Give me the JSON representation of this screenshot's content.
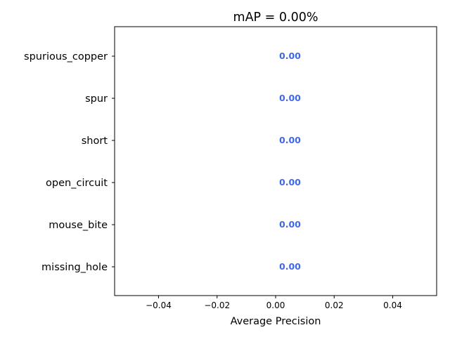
{
  "chart_data": {
    "type": "bar",
    "orientation": "horizontal",
    "title": "mAP = 0.00%",
    "xlabel": "Average Precision",
    "ylabel": "",
    "categories": [
      "spurious_copper",
      "spur",
      "short",
      "open_circuit",
      "mouse_bite",
      "missing_hole"
    ],
    "values": [
      0.0,
      0.0,
      0.0,
      0.0,
      0.0,
      0.0
    ],
    "value_labels": [
      "0.00",
      "0.00",
      "0.00",
      "0.00",
      "0.00",
      "0.00"
    ],
    "xlim": [
      -0.055,
      0.055
    ],
    "xticks": [
      -0.04,
      -0.02,
      0.0,
      0.02,
      0.04
    ],
    "xtick_labels": [
      "−0.04",
      "−0.02",
      "0.00",
      "0.02",
      "0.04"
    ],
    "grid": false,
    "bar_color": "#4169e1",
    "label_color": "#4169e1"
  }
}
